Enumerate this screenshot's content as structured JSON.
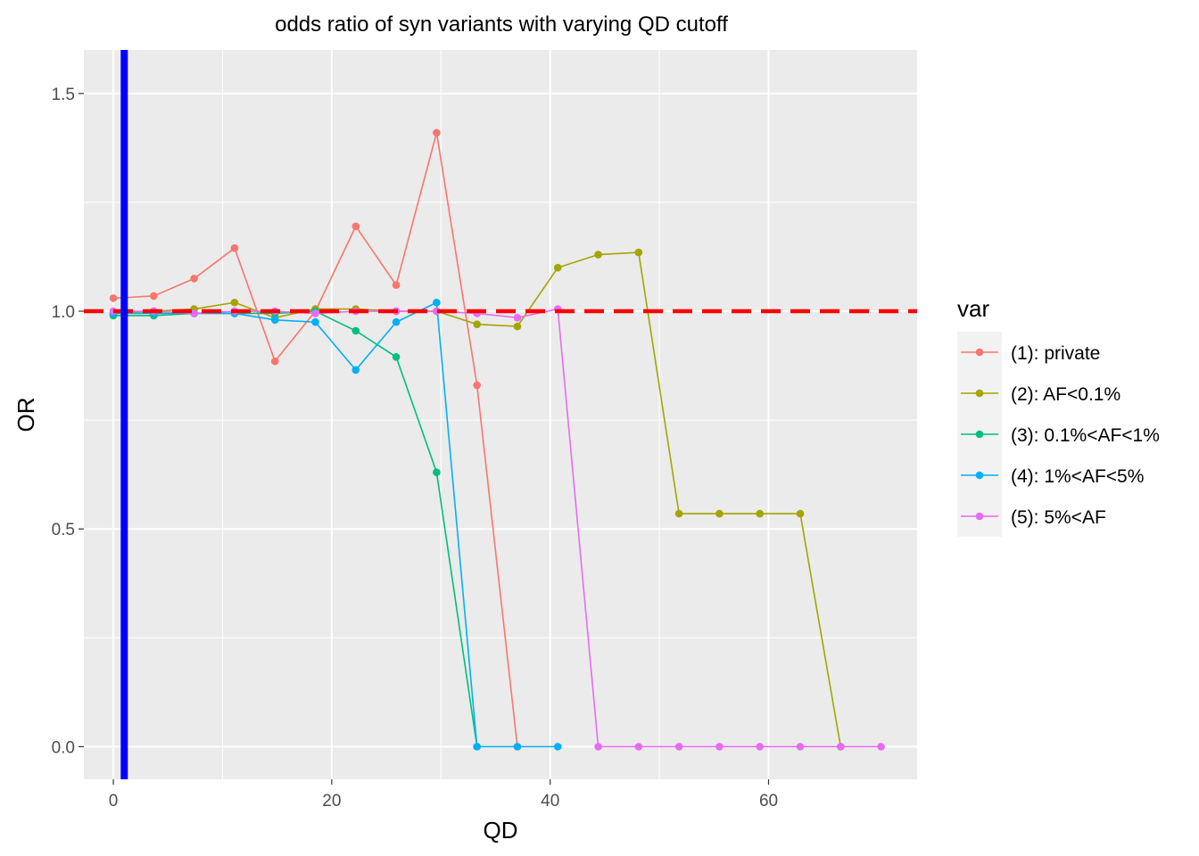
{
  "chart_data": {
    "type": "line",
    "title": "odds ratio of syn variants with varying QD cutoff",
    "xlabel": "QD",
    "ylabel": "OR",
    "xlim": [
      -2.7,
      73.6
    ],
    "ylim": [
      -0.075,
      1.6
    ],
    "xticks": [
      0,
      20,
      40,
      60
    ],
    "xtick_labels": [
      "0",
      "20",
      "40",
      "60"
    ],
    "yticks": [
      0.0,
      0.5,
      1.0,
      1.5
    ],
    "ytick_labels": [
      "0.0",
      "0.5",
      "1.0",
      "1.5"
    ],
    "x": [
      0,
      3.7,
      7.4,
      11.1,
      14.8,
      18.5,
      22.2,
      25.9,
      29.6,
      33.3,
      37.0,
      40.7,
      44.4,
      48.1,
      51.8,
      55.5,
      59.2,
      62.9,
      66.6,
      70.3
    ],
    "legend_title": "var",
    "legend_position": "right",
    "grid": true,
    "panel_background": "#ebebeb",
    "reference_lines": [
      {
        "orientation": "horizontal",
        "value": 1.0,
        "color": "#ff0000",
        "style": "dashed"
      },
      {
        "orientation": "vertical",
        "value": 1.0,
        "color": "#0000ff",
        "style": "solid"
      }
    ],
    "series": [
      {
        "name": "(1): private",
        "color": "#f8766d",
        "values": [
          1.03,
          1.035,
          1.075,
          1.145,
          0.885,
          1.0,
          1.195,
          1.06,
          1.41,
          0.83,
          0.0,
          null,
          null,
          null,
          null,
          null,
          null,
          null,
          null,
          null
        ]
      },
      {
        "name": "(2): AF<0.1%",
        "color": "#a3a500",
        "values": [
          0.995,
          1.0,
          1.005,
          1.02,
          0.985,
          1.005,
          1.005,
          1.0,
          1.0,
          0.97,
          0.965,
          1.1,
          1.13,
          1.135,
          0.535,
          0.535,
          0.535,
          0.535,
          0.0,
          null
        ]
      },
      {
        "name": "(3): 0.1%<AF<1%",
        "color": "#00bf7d",
        "values": [
          0.99,
          0.99,
          0.995,
          0.995,
          0.995,
          1.0,
          0.955,
          0.895,
          0.63,
          0.0,
          null,
          null,
          null,
          null,
          null,
          null,
          null,
          null,
          null,
          null
        ]
      },
      {
        "name": "(4): 1%<AF<5%",
        "color": "#00b0f6",
        "values": [
          0.995,
          0.995,
          0.995,
          0.995,
          0.98,
          0.975,
          0.865,
          0.975,
          1.02,
          0.0,
          0.0,
          0.0,
          null,
          null,
          null,
          null,
          null,
          null,
          null,
          null
        ]
      },
      {
        "name": "(5): 5%<AF",
        "color": "#e76bf3",
        "values": [
          1.0,
          1.0,
          0.995,
          1.0,
          1.0,
          0.995,
          1.0,
          1.0,
          1.0,
          0.995,
          0.985,
          1.005,
          0.0,
          0.0,
          0.0,
          0.0,
          0.0,
          0.0,
          0.0,
          0.0
        ]
      }
    ]
  }
}
